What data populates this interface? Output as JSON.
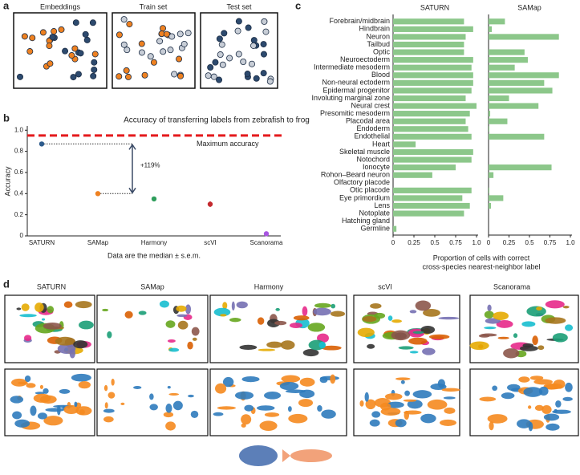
{
  "panel_labels": [
    "a",
    "b",
    "c",
    "d"
  ],
  "panel_a_titles": [
    "Embeddings",
    "Train set",
    "Test set"
  ],
  "panel_d_titles": [
    "SATURN",
    "SAMap",
    "Harmony",
    "scVI",
    "Scanorama"
  ],
  "chart_data": [
    {
      "type": "errorpoint",
      "title": "Accuracy of transferring labels  from zebrafish to frog",
      "ylabel": "Accuracy",
      "xlabel": "Data are the median ± s.e.m.",
      "categories": [
        "SATURN",
        "SAMap",
        "Harmony",
        "scVI",
        "Scanorama"
      ],
      "values": [
        0.87,
        0.4,
        0.35,
        0.3,
        0.02
      ],
      "errors": [
        0.01,
        0.02,
        0.01,
        0.025,
        0.005
      ],
      "colors": [
        "#2d5b8c",
        "#ee8121",
        "#2f9e5c",
        "#c42a2f",
        "#a855e0"
      ],
      "ylim": [
        0,
        1.04
      ],
      "yticks": [
        0,
        0.2,
        0.4,
        0.6,
        0.8,
        {
          "value": 1,
          "label": "1.0"
        }
      ],
      "reference_line": {
        "value": 0.95,
        "label": "Maximum accuracy",
        "color": "#e41a1c"
      },
      "annotation": "+119%"
    },
    {
      "type": "hbar_multiples",
      "xlabel": [
        "Proportion of cells with correct",
        "cross-species nearest-neighbor label"
      ],
      "categories": [
        "Forebrain/midbrain",
        "Hindbrain",
        "Neuron",
        "Tailbud",
        "Optic",
        "Neuroectoderm",
        "Intermediate mesoderm",
        "Blood",
        "Non-neural ectoderm",
        "Epidermal progenitor",
        "Involuting marginal zone",
        "Neural crest",
        "Presomitic mesoderm",
        "Placodal area",
        "Endoderm",
        "Endothelial",
        "Heart",
        "Skeletal muscle",
        "Notochord",
        "Ionocyte",
        "Rohon–Beard neuron",
        "Olfactory placode",
        "Otic placode",
        "Eye primordium",
        "Lens",
        "Notoplate",
        "Hatching gland",
        "Germline"
      ],
      "series": [
        {
          "name": "SATURN",
          "color": "#8cc78a",
          "values": [
            0.85,
            0.96,
            0.87,
            0.85,
            0.85,
            0.96,
            0.94,
            0.96,
            0.96,
            0.94,
            0.87,
            1,
            0.92,
            0.87,
            0.9,
            0.94,
            0.27,
            0.96,
            0.94,
            0.75,
            0.47,
            0,
            0.94,
            0.83,
            0.92,
            0.85,
            0,
            0.04
          ]
        },
        {
          "name": "SAMap",
          "color": "#8cc78a",
          "values": [
            0.2,
            0.04,
            0.86,
            0,
            0.44,
            0.48,
            0.32,
            0.86,
            0.68,
            0.78,
            0.25,
            0.61,
            0.02,
            0.23,
            0.01,
            0.68,
            0,
            0,
            0,
            0.77,
            0.06,
            0,
            0.01,
            0.18,
            0.03,
            0,
            0,
            0
          ]
        }
      ],
      "xlim": [
        0,
        1
      ],
      "xticks": [
        0,
        0.25,
        0.5,
        0.75,
        {
          "value": 1,
          "label": "1.0"
        }
      ]
    }
  ]
}
